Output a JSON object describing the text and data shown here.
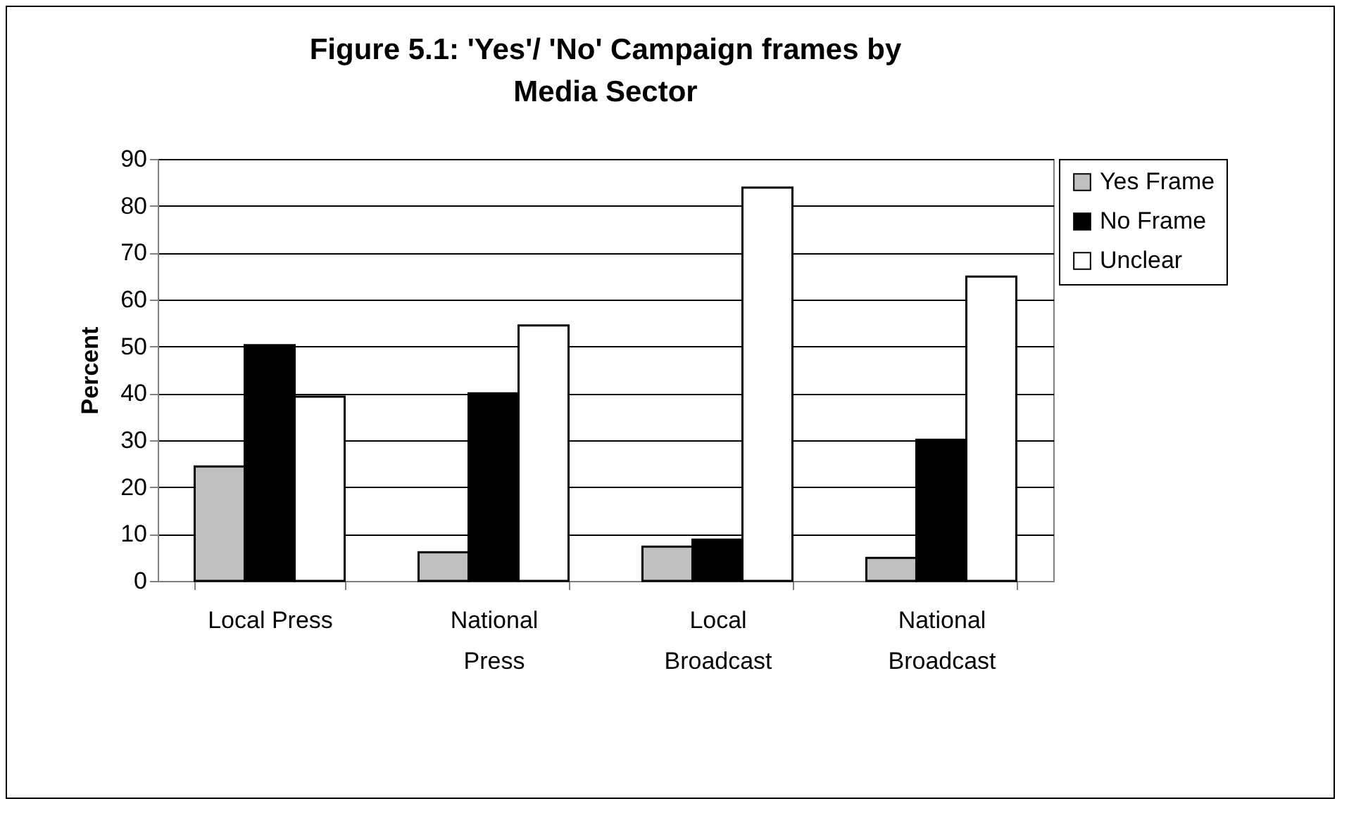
{
  "chart_data": {
    "type": "bar",
    "title": "Figure 5.1: 'Yes'/ 'No' Campaign frames by Media Sector",
    "ylabel": "Percent",
    "categories": [
      "Local Press",
      "National Press",
      "Local Broadcast",
      "National Broadcast"
    ],
    "series": [
      {
        "name": "Yes Frame",
        "color": "#c0c0c0",
        "values": [
          24.4,
          6.1,
          7.3,
          4.9
        ]
      },
      {
        "name": "No Frame",
        "color": "#000000",
        "values": [
          50.3,
          40,
          8.8,
          30.1
        ]
      },
      {
        "name": "Unclear",
        "color": "#ffffff",
        "values": [
          39.3,
          54.5,
          83.9,
          64.9
        ]
      }
    ],
    "ylim": [
      0,
      90
    ],
    "yticks": [
      0,
      10,
      20,
      30,
      40,
      50,
      60,
      70,
      80,
      90
    ],
    "grid": "y",
    "legend": "right"
  }
}
